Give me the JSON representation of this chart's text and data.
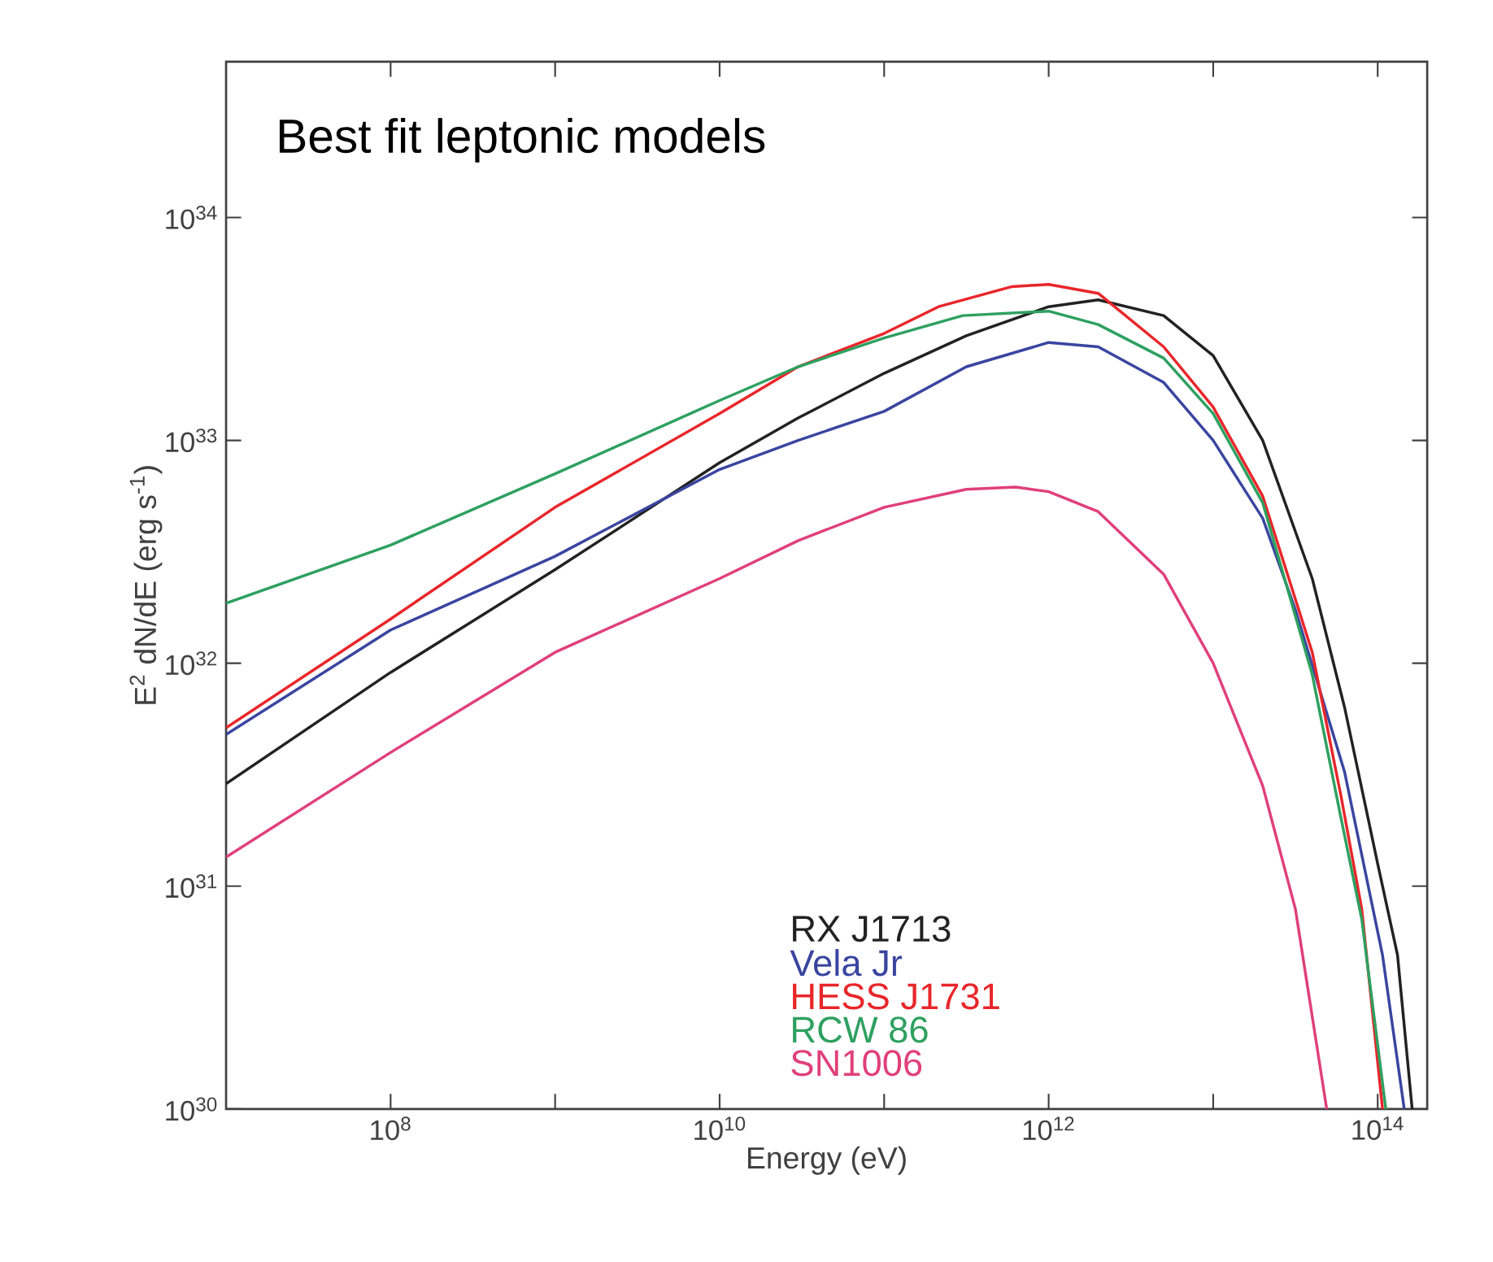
{
  "chart_data": {
    "type": "line",
    "title": "Best fit leptonic models",
    "xlabel": "Energy (eV)",
    "ylabel": "E$^{2}$ dN/dE (erg s$^{-1}$)",
    "log": "xy",
    "xlim": [
      10000000.0,
      200000000000000.0
    ],
    "ylim": [
      1e+30,
      5e+34
    ],
    "legend": "bottom",
    "grid": false,
    "marker": "none",
    "line_style": "solid",
    "xticks": [
      {
        "value": 100000000.0,
        "label": "10$^{8}$"
      },
      {
        "value": 1000000000.0,
        "label": null
      },
      {
        "value": 10000000000.0,
        "label": "10$^{10}$"
      },
      {
        "value": 100000000000.0,
        "label": null
      },
      {
        "value": 1000000000000.0,
        "label": "10$^{12}$"
      },
      {
        "value": 10000000000000.0,
        "label": null
      },
      {
        "value": 100000000000000.0,
        "label": "10$^{14}$"
      }
    ],
    "yticks": [
      {
        "value": 1e+30,
        "label": "10$^{30}$"
      },
      {
        "value": 1e+31,
        "label": "10$^{31}$"
      },
      {
        "value": 1e+32,
        "label": "10$^{32}$"
      },
      {
        "value": 1e+33,
        "label": "10$^{33}$"
      },
      {
        "value": 1e+34,
        "label": "10$^{34}$"
      }
    ],
    "series": [
      {
        "name": "RX J1713",
        "color": "#222222",
        "x": [
          10000000.0,
          100000000.0,
          1000000000.0,
          10000000000.0,
          30000000000.0,
          100000000000.0,
          316000000000.0,
          1000000000000.0,
          2000000000000.0,
          5000000000000.0,
          10000000000000.0,
          20000000000000.0,
          40000000000000.0,
          63000000000000.0,
          100000000000000.0,
          132000000000000.0,
          162000000000000.0
        ],
        "values": [
          2.88e+31,
          9.1e+31,
          2.63e+32,
          7.94e+32,
          1.26e+33,
          2e+33,
          2.95e+33,
          3.98e+33,
          4.27e+33,
          3.63e+33,
          2.4e+33,
          1e+33,
          2.4e+32,
          6.31e+31,
          1.26e+31,
          4.9e+30,
          1e+30
        ]
      },
      {
        "name": "Vela Jr",
        "color": "#3a45a0",
        "x": [
          10000000.0,
          100000000.0,
          1000000000.0,
          10000000000.0,
          30000000000.0,
          100000000000.0,
          316000000000.0,
          1000000000000.0,
          2000000000000.0,
          5000000000000.0,
          10000000000000.0,
          20000000000000.0,
          31600000000000.0,
          63000000000000.0,
          107000000000000.0,
          145000000000000.0
        ],
        "values": [
          4.79e+31,
          1.41e+32,
          3.02e+32,
          7.41e+32,
          1e+33,
          1.35e+33,
          2.14e+33,
          2.75e+33,
          2.63e+33,
          1.82e+33,
          1e+33,
          4.47e+32,
          1.74e+32,
          3.24e+31,
          4.9e+30,
          1e+30
        ]
      },
      {
        "name": "HESS J1731",
        "color": "#e8262a",
        "x": [
          10000000.0,
          100000000.0,
          1000000000.0,
          10000000000.0,
          30000000000.0,
          100000000000.0,
          214000000000.0,
          600000000000.0,
          1000000000000.0,
          2000000000000.0,
          5000000000000.0,
          10000000000000.0,
          20000000000000.0,
          40000000000000.0,
          60000000000000.0,
          80000000000000.0,
          107000000000000.0
        ],
        "values": [
          5.13e+31,
          1.58e+32,
          5.01e+32,
          1.32e+33,
          2.14e+33,
          3.02e+33,
          3.98e+33,
          4.9e+33,
          5.01e+33,
          4.57e+33,
          2.63e+33,
          1.41e+33,
          5.62e+32,
          1.12e+32,
          2.51e+31,
          7.9e+30,
          1e+30
        ]
      },
      {
        "name": "RCW 86",
        "color": "#2ea060",
        "x": [
          10000000.0,
          100000000.0,
          1000000000.0,
          10000000000.0,
          30000000000.0,
          100000000000.0,
          300000000000.0,
          1000000000000.0,
          2000000000000.0,
          5000000000000.0,
          10000000000000.0,
          20000000000000.0,
          40000000000000.0,
          60000000000000.0,
          80000000000000.0,
          112000000000000.0
        ],
        "values": [
          1.86e+32,
          3.39e+32,
          7.08e+32,
          1.51e+33,
          2.14e+33,
          2.88e+33,
          3.63e+33,
          3.8e+33,
          3.31e+33,
          2.34e+33,
          1.32e+33,
          5.25e+32,
          8.9e+31,
          2e+31,
          7.1e+30,
          1e+30
        ]
      },
      {
        "name": "SN1006",
        "color": "#e0407a",
        "x": [
          10000000.0,
          100000000.0,
          1000000000.0,
          10000000000.0,
          30000000000.0,
          100000000000.0,
          316000000000.0,
          630000000000.0,
          1000000000000.0,
          2000000000000.0,
          5000000000000.0,
          10000000000000.0,
          20000000000000.0,
          31600000000000.0,
          49000000000000.0
        ],
        "values": [
          1.35e+31,
          3.98e+31,
          1.12e+32,
          2.4e+32,
          3.55e+32,
          5.01e+32,
          6.03e+32,
          6.17e+32,
          5.89e+32,
          4.79e+32,
          2.51e+32,
          1e+32,
          2.82e+31,
          7.9e+30,
          1e+30
        ]
      }
    ]
  }
}
